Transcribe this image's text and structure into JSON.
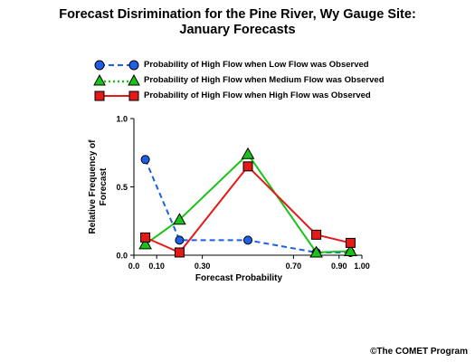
{
  "title_line1": "Forecast Disrimination for the Pine River, Wy Gauge Site:",
  "title_line2": "January Forecasts",
  "copyright": "©The COMET Program",
  "legend": [
    {
      "label": "Probability of High Flow when Low Flow was Observed"
    },
    {
      "label": "Probability of High Flow when Medium Flow was Observed"
    },
    {
      "label": "Probability of High Flow when High Flow was Observed"
    }
  ],
  "colors": {
    "low": "#1e5fe6",
    "medium": "#19c419",
    "high": "#e61919"
  },
  "chart_data": {
    "type": "line",
    "title": "Forecast Disrimination for the Pine River, Wy Gauge Site: January Forecasts",
    "xlabel": "Forecast Probability",
    "ylabel": "Relative Frequency of Forecast",
    "xlim": [
      0.0,
      1.0
    ],
    "ylim": [
      0.0,
      1.0
    ],
    "x_ticks": [
      "0.0",
      "0.10",
      "0.30",
      "0.70",
      "0.90",
      "1.00"
    ],
    "x_tick_values": [
      0.0,
      0.1,
      0.3,
      0.7,
      0.9,
      1.0
    ],
    "y_ticks": [
      "0.0",
      "0.5",
      "1.0"
    ],
    "y_tick_values": [
      0.0,
      0.5,
      1.0
    ],
    "grid": false,
    "legend_position": "top",
    "series": [
      {
        "name": "Probability of High Flow when Low Flow was Observed",
        "key": "low",
        "style": "dashed",
        "marker": "circle",
        "x": [
          0.05,
          0.2,
          0.5,
          0.8,
          0.95
        ],
        "y": [
          0.7,
          0.11,
          0.11,
          0.02,
          0.02
        ]
      },
      {
        "name": "Probability of High Flow when Medium Flow was Observed",
        "key": "medium",
        "style": "solid",
        "marker": "triangle",
        "x": [
          0.05,
          0.2,
          0.5,
          0.8,
          0.95
        ],
        "y": [
          0.08,
          0.26,
          0.74,
          0.02,
          0.03
        ]
      },
      {
        "name": "Probability of High Flow when High Flow was Observed",
        "key": "high",
        "style": "solid",
        "marker": "square",
        "x": [
          0.05,
          0.2,
          0.5,
          0.8,
          0.95
        ],
        "y": [
          0.13,
          0.02,
          0.65,
          0.15,
          0.09
        ]
      }
    ]
  }
}
